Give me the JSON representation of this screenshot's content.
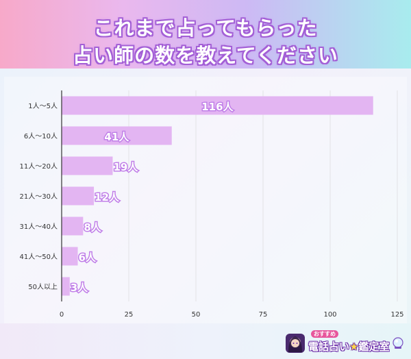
{
  "header": {
    "title_line1": "これまで占ってもらった",
    "title_line2": "占い師の数を教えてください"
  },
  "chart_data": {
    "type": "bar",
    "orientation": "horizontal",
    "categories": [
      "1人〜5人",
      "6人〜10人",
      "11人〜20人",
      "21人〜30人",
      "31人〜40人",
      "41人〜50人",
      "50人以上"
    ],
    "values": [
      116,
      41,
      19,
      12,
      8,
      6,
      3
    ],
    "data_labels": [
      "116人",
      "41人",
      "19人",
      "12人",
      "8人",
      "6人",
      "3人"
    ],
    "x_ticks": [
      0,
      25,
      50,
      75,
      100,
      125
    ],
    "xlim": [
      0,
      125
    ],
    "grid": "vertical",
    "bar_color": "#e3b5f2",
    "label_color": "#c07fe8"
  },
  "logo": {
    "tagline": "おすすめ",
    "name_part1": "電話占い",
    "star": "★",
    "name_part2": "鑑定室",
    "avatar_icon": "fortune-teller-avatar-icon",
    "ball_icon": "crystal-ball-icon"
  },
  "colors": {
    "title_outline": "#a35fd6",
    "grid": "#e2e2e6",
    "axis": "#333333"
  }
}
